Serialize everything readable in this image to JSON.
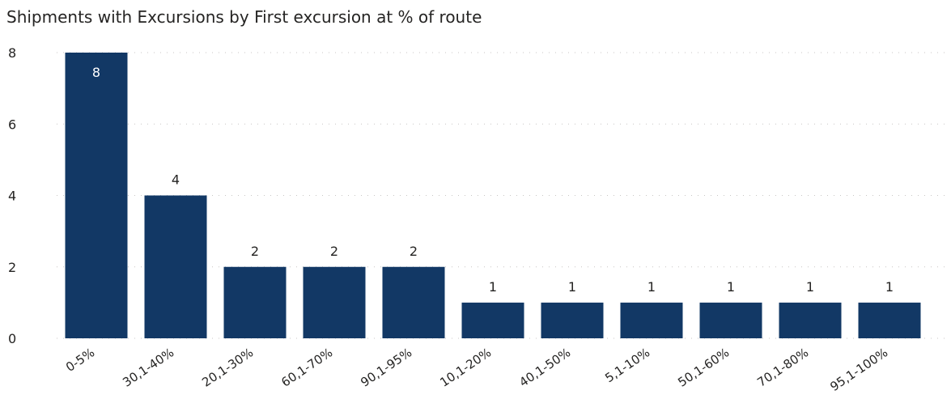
{
  "chart_data": {
    "type": "bar",
    "title": "Shipments with Excursions by First excursion at % of route",
    "xlabel": "",
    "ylabel": "",
    "categories": [
      "0-5%",
      "30,1-40%",
      "20,1-30%",
      "60,1-70%",
      "90,1-95%",
      "10,1-20%",
      "40,1-50%",
      "5,1-10%",
      "50,1-60%",
      "70,1-80%",
      "95,1-100%"
    ],
    "values": [
      8,
      4,
      2,
      2,
      2,
      1,
      1,
      1,
      1,
      1,
      1
    ],
    "ylim": [
      0,
      8
    ],
    "yticks": [
      0,
      2,
      4,
      6,
      8
    ],
    "grid": true,
    "data_labels": true,
    "bar_color": "#123865",
    "legend": "none"
  }
}
